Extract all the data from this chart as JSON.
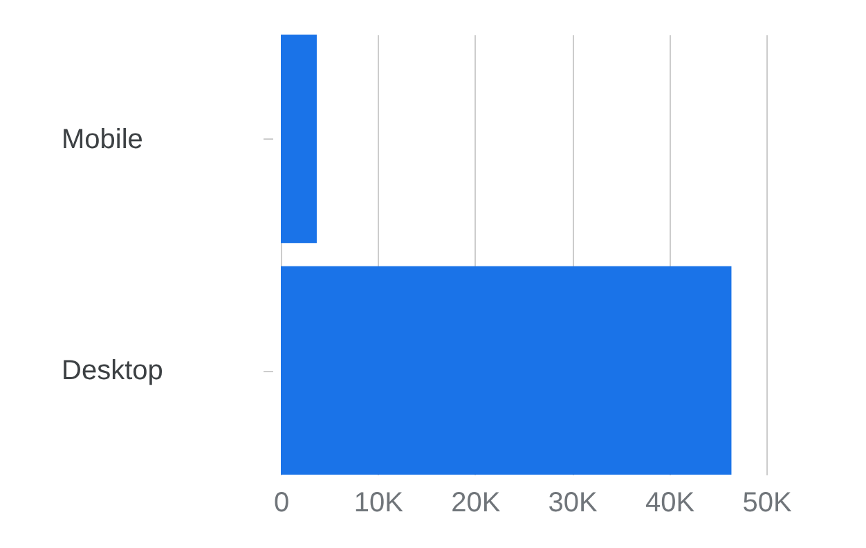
{
  "chart_data": {
    "type": "bar",
    "orientation": "horizontal",
    "categories": [
      "Mobile",
      "Desktop"
    ],
    "values": [
      3700,
      46400
    ],
    "color": "#1a73e8",
    "xlim": [
      0,
      50000
    ],
    "xticks": [
      0,
      {
        "value": 10000,
        "label": "10K"
      },
      {
        "value": 20000,
        "label": "20K"
      },
      {
        "value": 30000,
        "label": "30K"
      },
      {
        "value": 40000,
        "label": "40K"
      },
      {
        "value": 50000,
        "label": "50K"
      }
    ],
    "grid": "x"
  }
}
